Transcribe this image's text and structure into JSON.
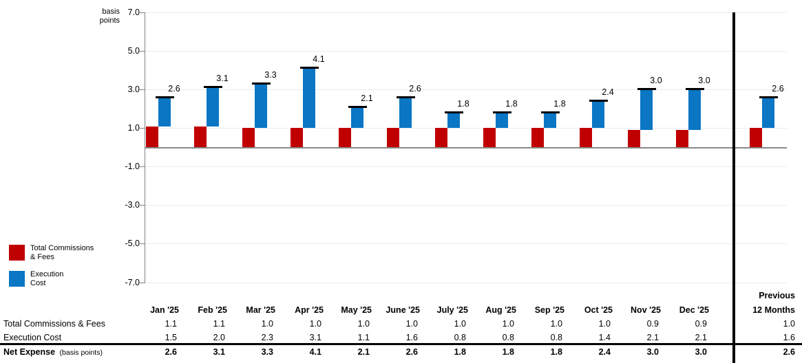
{
  "chart_data": {
    "type": "bar",
    "title": "",
    "ylabel": "basis points",
    "ylim": [
      -7,
      7
    ],
    "yticks": [
      7,
      5,
      3,
      1,
      -1,
      -3,
      -5,
      -7
    ],
    "grid": true,
    "legend_position": "bottom-left",
    "categories": [
      "Jan '25",
      "Feb '25",
      "Mar '25",
      "Apr '25",
      "May '25",
      "June '25",
      "July '25",
      "Aug '25",
      "Sep '25",
      "Oct '25",
      "Nov '25",
      "Dec '25",
      "Previous 12 Months"
    ],
    "series": [
      {
        "name": "Total Commissions & Fees",
        "color": "#C00000",
        "values": [
          1.1,
          1.1,
          1.0,
          1.0,
          1.0,
          1.0,
          1.0,
          1.0,
          1.0,
          1.0,
          0.9,
          0.9,
          1.0
        ]
      },
      {
        "name": "Execution Cost",
        "color": "#0A76C4",
        "values": [
          1.5,
          2.0,
          2.3,
          3.1,
          1.1,
          1.6,
          0.8,
          0.8,
          0.8,
          1.4,
          2.1,
          2.1,
          1.6
        ]
      }
    ],
    "totals": {
      "name": "Net Expense (basis points)",
      "values": [
        2.6,
        3.1,
        3.3,
        4.1,
        2.1,
        2.6,
        1.8,
        1.8,
        1.8,
        2.4,
        3.0,
        3.0,
        2.6
      ]
    }
  },
  "legend": {
    "items": [
      {
        "label": "Total Commissions\n& Fees",
        "color": "#C00000"
      },
      {
        "label": "Execution\nCost",
        "color": "#0A76C4"
      }
    ]
  },
  "table": {
    "prev_header": [
      "Previous",
      "12 Months"
    ],
    "row_labels": [
      "Total Commissions & Fees",
      "Execution Cost"
    ],
    "total_row_label": "Net Expense",
    "total_row_suffix": "(basis points)"
  }
}
